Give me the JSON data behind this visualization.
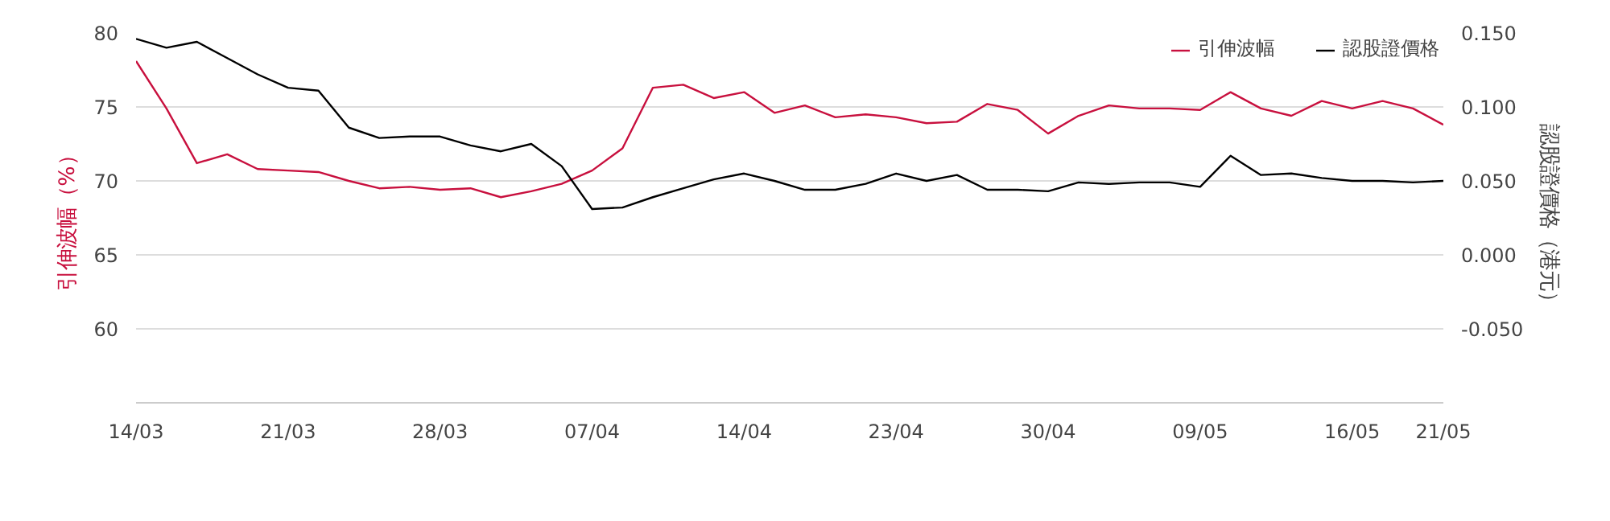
{
  "chart_data": {
    "type": "line",
    "categories": [
      "14/03",
      null,
      null,
      null,
      null,
      "21/03",
      null,
      null,
      null,
      null,
      "28/03",
      null,
      null,
      null,
      null,
      "07/04",
      null,
      null,
      null,
      null,
      "14/04",
      null,
      null,
      null,
      null,
      "23/04",
      null,
      null,
      null,
      null,
      "30/04",
      null,
      null,
      null,
      null,
      "09/05",
      null,
      null,
      null,
      null,
      "16/05",
      null,
      null,
      "21/05"
    ],
    "series": [
      {
        "name": "引伸波幅",
        "color": "#c8103e",
        "values": [
          78.1,
          74.9,
          71.2,
          71.8,
          70.8,
          70.7,
          70.6,
          70.0,
          69.5,
          69.6,
          69.4,
          69.5,
          68.9,
          69.3,
          69.8,
          70.7,
          72.2,
          76.3,
          76.5,
          75.6,
          76.0,
          74.6,
          75.1,
          74.3,
          74.5,
          74.3,
          73.9,
          74.0,
          75.2,
          74.8,
          73.2,
          74.4,
          75.1,
          74.9,
          74.9,
          74.8,
          76.0,
          74.9,
          74.4,
          75.4,
          74.9,
          75.4,
          74.9,
          73.8
        ]
      },
      {
        "name": "認股證價格",
        "color": "#000000",
        "axis": "y2",
        "values": [
          0.146,
          0.14,
          0.144,
          0.133,
          0.122,
          0.113,
          0.111,
          0.086,
          0.079,
          0.08,
          0.08,
          0.074,
          0.07,
          0.075,
          0.06,
          0.031,
          0.032,
          0.039,
          0.045,
          0.051,
          0.055,
          0.05,
          0.044,
          0.044,
          0.048,
          0.055,
          0.05,
          0.054,
          0.044,
          0.044,
          0.043,
          0.049,
          0.048,
          0.049,
          0.049,
          0.046,
          0.067,
          0.054,
          0.055,
          0.052,
          0.05,
          0.05,
          0.049,
          0.05
        ]
      }
    ],
    "ylabel": "引伸波幅（%）",
    "y2label": "認股證價格（港元）",
    "ylim": [
      55,
      80
    ],
    "yticks": [
      60,
      65,
      70,
      75,
      80
    ],
    "y2lim": [
      -0.1,
      0.15
    ],
    "y2ticks": [
      {
        "value": -0.05,
        "label": "-0.050"
      },
      {
        "value": 0,
        "label": "0.000"
      },
      {
        "value": 0.05,
        "label": "0.050"
      },
      {
        "value": 0.1,
        "label": "0.100"
      },
      {
        "value": 0.15,
        "label": "0.150"
      }
    ],
    "grid": "y",
    "legend": "top right",
    "line_style": "solid",
    "marker": "none"
  }
}
